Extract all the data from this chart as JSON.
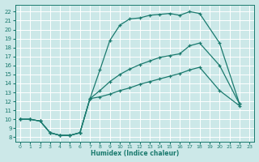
{
  "xlabel": "Humidex (Indice chaleur)",
  "bg_color": "#cce8e8",
  "line_color": "#1a7a6e",
  "grid_color": "#ffffff",
  "xlim": [
    -0.5,
    23.5
  ],
  "ylim": [
    7.5,
    22.8
  ],
  "xticks": [
    0,
    1,
    2,
    3,
    4,
    5,
    6,
    7,
    8,
    9,
    10,
    11,
    12,
    13,
    14,
    15,
    16,
    17,
    18,
    19,
    20,
    21,
    22,
    23
  ],
  "yticks": [
    8,
    9,
    10,
    11,
    12,
    13,
    14,
    15,
    16,
    17,
    18,
    19,
    20,
    21,
    22
  ],
  "line1_x": [
    0,
    1,
    2,
    3,
    4,
    5,
    6,
    7,
    8,
    9,
    10,
    11,
    12,
    13,
    14,
    15,
    16,
    17,
    18,
    20,
    22
  ],
  "line1_y": [
    10,
    10,
    9.8,
    8.5,
    8.2,
    8.2,
    8.5,
    12.3,
    15.5,
    18.8,
    20.5,
    21.2,
    21.3,
    21.6,
    21.7,
    21.8,
    21.6,
    22.0,
    21.8,
    18.5,
    11.7
  ],
  "line2_x": [
    0,
    1,
    2,
    3,
    4,
    5,
    6,
    7,
    8,
    9,
    10,
    11,
    12,
    13,
    14,
    15,
    16,
    17,
    18,
    20,
    22
  ],
  "line2_y": [
    10,
    10,
    9.8,
    8.5,
    8.2,
    8.2,
    8.5,
    12.3,
    13.2,
    14.2,
    15.0,
    15.6,
    16.1,
    16.5,
    16.9,
    17.1,
    17.3,
    18.2,
    18.5,
    16.0,
    11.7
  ],
  "line3_x": [
    0,
    1,
    2,
    3,
    4,
    5,
    6,
    7,
    8,
    9,
    10,
    11,
    12,
    13,
    14,
    15,
    16,
    17,
    18,
    20,
    22
  ],
  "line3_y": [
    10,
    10,
    9.8,
    8.5,
    8.2,
    8.2,
    8.5,
    12.3,
    12.5,
    12.8,
    13.2,
    13.5,
    13.9,
    14.2,
    14.5,
    14.8,
    15.1,
    15.5,
    15.8,
    13.2,
    11.5
  ]
}
